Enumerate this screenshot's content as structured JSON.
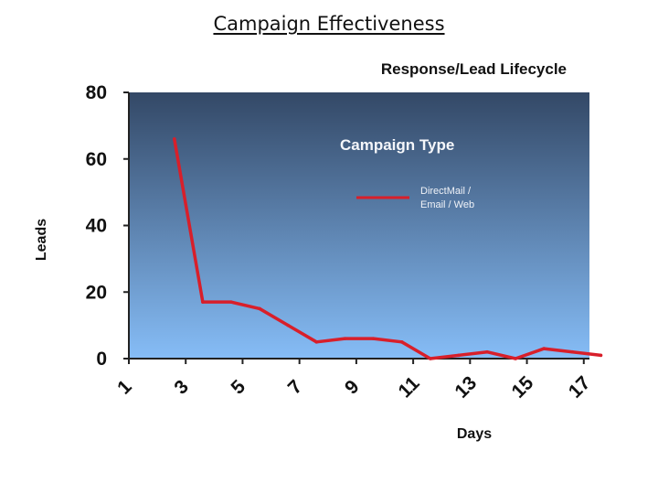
{
  "page": {
    "title": "Campaign Effectiveness"
  },
  "chart_data": {
    "type": "line",
    "title": "Response/Lead Lifecycle",
    "xlabel": "Days",
    "ylabel": "Leads",
    "x": [
      1,
      2,
      3,
      4,
      5,
      6,
      7,
      8,
      9,
      10,
      11,
      12,
      13,
      14,
      15,
      16,
      17
    ],
    "x_tick_labels": [
      "1",
      "3",
      "5",
      "7",
      "9",
      "11",
      "13",
      "15",
      "17"
    ],
    "x_tick_values": [
      1,
      3,
      5,
      7,
      9,
      11,
      13,
      15,
      17
    ],
    "xlim": [
      1,
      17.2
    ],
    "ylim": [
      0,
      80
    ],
    "y_ticks": [
      0,
      20,
      40,
      60,
      80
    ],
    "grid": false,
    "legend": {
      "title": "Campaign Type",
      "placement": "top-right"
    },
    "series": [
      {
        "name": "DirectMail / Email / Web",
        "name_lines": [
          "DirectMail /",
          "Email / Web"
        ],
        "color": "#d81f2a",
        "values": [
          null,
          66,
          17,
          17,
          15,
          10,
          5,
          6,
          6,
          5,
          0,
          1,
          2,
          0,
          3,
          2,
          1
        ]
      }
    ],
    "colors": {
      "plot_top": "#334866",
      "plot_bottom": "#86bdf7",
      "axis": "#222222"
    }
  }
}
